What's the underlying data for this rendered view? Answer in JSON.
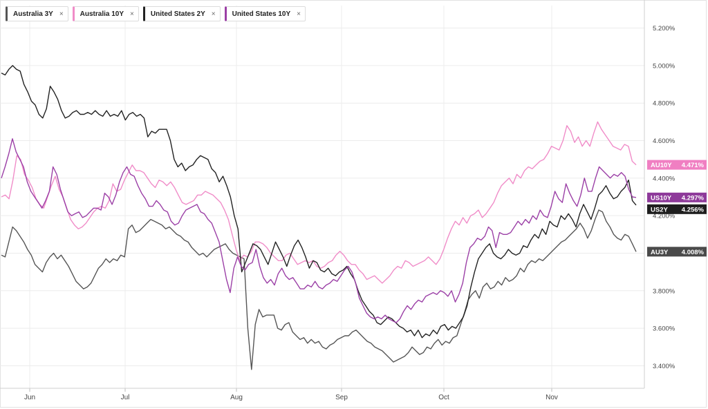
{
  "legend": [
    {
      "label": "Australia 3Y",
      "color": "#555555"
    },
    {
      "label": "Australia 10Y",
      "color": "#f08cc8"
    },
    {
      "label": "United States 2Y",
      "color": "#222222"
    },
    {
      "label": "United States 10Y",
      "color": "#9b3fa6"
    }
  ],
  "legend_close": "×",
  "chart_data": {
    "type": "line",
    "ylim": [
      3.28,
      5.32
    ],
    "yticks": [
      "3.400%",
      "3.600%",
      "3.800%",
      "4.000%",
      "4.200%",
      "4.400%",
      "4.600%",
      "4.800%",
      "5.000%",
      "5.200%"
    ],
    "ytick_values": [
      3.4,
      3.6,
      3.8,
      4.0,
      4.2,
      4.4,
      4.6,
      4.8,
      5.0,
      5.2
    ],
    "xticks": [
      "Jun",
      "Jul",
      "Aug",
      "Sep",
      "Oct",
      "Nov"
    ],
    "grid": true,
    "series": [
      {
        "name": "Australia 3Y",
        "tag": "AU3Y",
        "last": "4.008%",
        "color": "#555555",
        "tag_color": "#4a4a4a",
        "values": [
          3.99,
          3.98,
          4.06,
          4.14,
          4.12,
          4.09,
          4.06,
          4.02,
          3.99,
          3.94,
          3.92,
          3.9,
          3.95,
          3.98,
          4.0,
          3.97,
          3.99,
          3.96,
          3.93,
          3.89,
          3.85,
          3.83,
          3.81,
          3.82,
          3.84,
          3.88,
          3.92,
          3.94,
          3.97,
          3.95,
          3.97,
          3.96,
          3.99,
          3.98,
          4.13,
          4.15,
          4.11,
          4.12,
          4.14,
          4.16,
          4.18,
          4.17,
          4.16,
          4.15,
          4.13,
          4.14,
          4.12,
          4.1,
          4.09,
          4.07,
          4.06,
          4.03,
          4.01,
          3.99,
          4.0,
          3.98,
          4.0,
          4.02,
          4.03,
          4.04,
          4.05,
          4.02,
          4.0,
          3.99,
          3.98,
          3.97,
          3.6,
          3.38,
          3.62,
          3.7,
          3.66,
          3.67,
          3.67,
          3.67,
          3.6,
          3.59,
          3.62,
          3.63,
          3.58,
          3.56,
          3.54,
          3.55,
          3.52,
          3.54,
          3.52,
          3.53,
          3.5,
          3.49,
          3.51,
          3.52,
          3.54,
          3.55,
          3.56,
          3.56,
          3.58,
          3.59,
          3.57,
          3.55,
          3.53,
          3.52,
          3.5,
          3.49,
          3.48,
          3.46,
          3.44,
          3.42,
          3.43,
          3.44,
          3.45,
          3.47,
          3.5,
          3.48,
          3.46,
          3.47,
          3.5,
          3.49,
          3.52,
          3.54,
          3.51,
          3.53,
          3.52,
          3.55,
          3.56,
          3.62,
          3.68,
          3.75,
          3.78,
          3.8,
          3.76,
          3.82,
          3.84,
          3.81,
          3.82,
          3.85,
          3.83,
          3.87,
          3.85,
          3.86,
          3.88,
          3.92,
          3.9,
          3.94,
          3.96,
          3.95,
          3.97,
          3.96,
          3.98,
          4.0,
          4.02,
          4.04,
          4.06,
          4.07,
          4.09,
          4.11,
          4.13,
          4.16,
          4.13,
          4.08,
          4.12,
          4.18,
          4.23,
          4.22,
          4.17,
          4.14,
          4.1,
          4.08,
          4.07,
          4.1,
          4.09,
          4.05,
          4.008
        ]
      },
      {
        "name": "Australia 10Y",
        "tag": "AU10Y",
        "last": "4.471%",
        "color": "#f08cc8",
        "tag_color": "#f07fc2",
        "values": [
          4.3,
          4.31,
          4.29,
          4.39,
          4.52,
          4.5,
          4.42,
          4.39,
          4.35,
          4.29,
          4.26,
          4.24,
          4.3,
          4.36,
          4.41,
          4.34,
          4.3,
          4.24,
          4.18,
          4.15,
          4.13,
          4.14,
          4.16,
          4.19,
          4.22,
          4.24,
          4.25,
          4.24,
          4.28,
          4.37,
          4.33,
          4.34,
          4.39,
          4.43,
          4.47,
          4.44,
          4.44,
          4.43,
          4.4,
          4.37,
          4.35,
          4.39,
          4.38,
          4.36,
          4.38,
          4.35,
          4.31,
          4.27,
          4.26,
          4.27,
          4.28,
          4.31,
          4.31,
          4.33,
          4.32,
          4.31,
          4.29,
          4.27,
          4.23,
          4.18,
          4.1,
          4.02,
          3.96,
          3.99,
          3.98,
          4.01,
          4.06,
          4.06,
          4.05,
          4.03,
          4.0,
          3.98,
          3.96,
          3.96,
          3.99,
          4.0,
          3.97,
          3.94,
          3.95,
          3.96,
          3.95,
          3.96,
          3.93,
          3.92,
          3.93,
          3.95,
          3.96,
          3.99,
          4.01,
          3.99,
          3.96,
          3.94,
          3.94,
          3.91,
          3.89,
          3.86,
          3.87,
          3.88,
          3.86,
          3.84,
          3.86,
          3.88,
          3.91,
          3.93,
          3.92,
          3.96,
          3.95,
          3.93,
          3.94,
          3.95,
          3.96,
          3.98,
          3.96,
          3.94,
          3.97,
          4.02,
          4.08,
          4.13,
          4.17,
          4.15,
          4.19,
          4.16,
          4.2,
          4.21,
          4.23,
          4.19,
          4.21,
          4.24,
          4.27,
          4.32,
          4.36,
          4.38,
          4.4,
          4.37,
          4.42,
          4.4,
          4.44,
          4.46,
          4.45,
          4.47,
          4.49,
          4.5,
          4.53,
          4.57,
          4.56,
          4.55,
          4.6,
          4.68,
          4.65,
          4.59,
          4.62,
          4.57,
          4.6,
          4.57,
          4.64,
          4.7,
          4.66,
          4.63,
          4.6,
          4.57,
          4.56,
          4.55,
          4.58,
          4.57,
          4.49,
          4.471
        ]
      },
      {
        "name": "United States 2Y",
        "tag": "US2Y",
        "last": "4.256%",
        "color": "#222222",
        "tag_color": "#1e1e1e",
        "values": [
          4.96,
          4.95,
          4.98,
          5.0,
          4.98,
          4.97,
          4.9,
          4.86,
          4.81,
          4.79,
          4.74,
          4.72,
          4.77,
          4.89,
          4.86,
          4.82,
          4.76,
          4.72,
          4.73,
          4.75,
          4.76,
          4.74,
          4.74,
          4.75,
          4.74,
          4.76,
          4.74,
          4.73,
          4.76,
          4.73,
          4.74,
          4.73,
          4.76,
          4.71,
          4.74,
          4.75,
          4.73,
          4.74,
          4.72,
          4.62,
          4.65,
          4.64,
          4.66,
          4.66,
          4.66,
          4.6,
          4.5,
          4.46,
          4.48,
          4.44,
          4.46,
          4.47,
          4.5,
          4.52,
          4.51,
          4.5,
          4.45,
          4.43,
          4.38,
          4.41,
          4.36,
          4.3,
          4.2,
          4.13,
          3.9,
          3.95,
          4.0,
          4.05,
          4.04,
          4.02,
          3.98,
          3.94,
          4.0,
          4.06,
          4.02,
          3.98,
          3.93,
          3.99,
          4.04,
          4.07,
          4.03,
          3.98,
          3.92,
          3.96,
          3.95,
          3.91,
          3.9,
          3.92,
          3.89,
          3.88,
          3.9,
          3.91,
          3.93,
          3.89,
          3.86,
          3.8,
          3.75,
          3.72,
          3.69,
          3.67,
          3.63,
          3.62,
          3.64,
          3.66,
          3.65,
          3.63,
          3.61,
          3.6,
          3.58,
          3.59,
          3.56,
          3.59,
          3.55,
          3.57,
          3.56,
          3.59,
          3.57,
          3.61,
          3.62,
          3.59,
          3.61,
          3.6,
          3.63,
          3.66,
          3.72,
          3.82,
          3.9,
          3.97,
          4.0,
          4.03,
          4.05,
          4.0,
          3.98,
          3.97,
          3.99,
          4.02,
          4.0,
          3.99,
          4.0,
          4.04,
          4.03,
          4.07,
          4.1,
          4.08,
          4.13,
          4.1,
          4.17,
          4.15,
          4.14,
          4.2,
          4.18,
          4.21,
          4.18,
          4.14,
          4.21,
          4.26,
          4.22,
          4.18,
          4.24,
          4.31,
          4.33,
          4.36,
          4.32,
          4.29,
          4.3,
          4.33,
          4.35,
          4.39,
          4.28,
          4.256
        ]
      },
      {
        "name": "United States 10Y",
        "tag": "US10Y",
        "last": "4.297%",
        "color": "#9b3fa6",
        "tag_color": "#8e3a9a",
        "values": [
          4.4,
          4.46,
          4.53,
          4.61,
          4.54,
          4.5,
          4.46,
          4.38,
          4.33,
          4.3,
          4.27,
          4.24,
          4.28,
          4.33,
          4.46,
          4.42,
          4.34,
          4.28,
          4.22,
          4.2,
          4.21,
          4.22,
          4.19,
          4.2,
          4.22,
          4.24,
          4.24,
          4.23,
          4.32,
          4.3,
          4.26,
          4.31,
          4.38,
          4.43,
          4.46,
          4.42,
          4.41,
          4.36,
          4.32,
          4.29,
          4.25,
          4.25,
          4.28,
          4.26,
          4.23,
          4.22,
          4.17,
          4.15,
          4.16,
          4.2,
          4.23,
          4.24,
          4.25,
          4.26,
          4.22,
          4.21,
          4.18,
          4.16,
          4.11,
          4.06,
          3.96,
          3.86,
          3.79,
          3.92,
          3.98,
          3.93,
          3.91,
          3.94,
          3.95,
          4.02,
          3.93,
          3.87,
          3.84,
          3.86,
          3.83,
          3.89,
          3.92,
          3.88,
          3.86,
          3.87,
          3.84,
          3.81,
          3.81,
          3.83,
          3.82,
          3.85,
          3.82,
          3.81,
          3.83,
          3.84,
          3.86,
          3.85,
          3.88,
          3.91,
          3.93,
          3.9,
          3.84,
          3.76,
          3.72,
          3.68,
          3.66,
          3.65,
          3.66,
          3.65,
          3.67,
          3.65,
          3.64,
          3.63,
          3.65,
          3.69,
          3.72,
          3.7,
          3.73,
          3.75,
          3.74,
          3.77,
          3.78,
          3.79,
          3.78,
          3.8,
          3.79,
          3.77,
          3.8,
          3.74,
          3.78,
          3.84,
          3.95,
          4.03,
          4.05,
          4.08,
          4.07,
          4.09,
          4.14,
          4.12,
          4.03,
          4.11,
          4.1,
          4.1,
          4.11,
          4.14,
          4.17,
          4.15,
          4.18,
          4.16,
          4.2,
          4.18,
          4.23,
          4.2,
          4.19,
          4.25,
          4.33,
          4.29,
          4.27,
          4.37,
          4.32,
          4.28,
          4.25,
          4.31,
          4.4,
          4.33,
          4.33,
          4.4,
          4.46,
          4.44,
          4.42,
          4.4,
          4.42,
          4.41,
          4.43,
          4.41,
          4.34,
          4.3,
          4.297
        ]
      }
    ]
  }
}
